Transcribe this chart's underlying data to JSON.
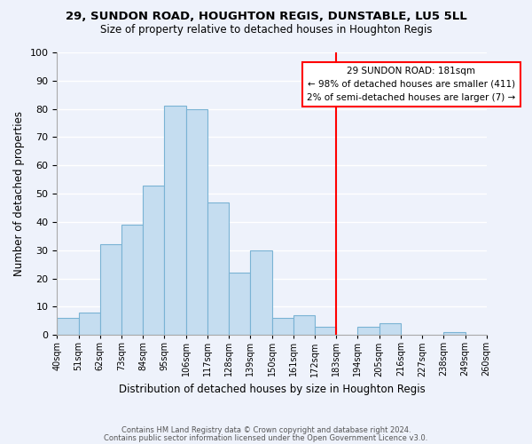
{
  "title1": "29, SUNDON ROAD, HOUGHTON REGIS, DUNSTABLE, LU5 5LL",
  "title2": "Size of property relative to detached houses in Houghton Regis",
  "xlabel": "Distribution of detached houses by size in Houghton Regis",
  "ylabel": "Number of detached properties",
  "bin_labels": [
    "40sqm",
    "51sqm",
    "62sqm",
    "73sqm",
    "84sqm",
    "95sqm",
    "106sqm",
    "117sqm",
    "128sqm",
    "139sqm",
    "150sqm",
    "161sqm",
    "172sqm",
    "183sqm",
    "194sqm",
    "205sqm",
    "216sqm",
    "227sqm",
    "238sqm",
    "249sqm",
    "260sqm"
  ],
  "bar_values": [
    6,
    8,
    32,
    39,
    53,
    81,
    80,
    47,
    22,
    30,
    6,
    7,
    3,
    0,
    3,
    4,
    0,
    0,
    1,
    0
  ],
  "bar_color": "#c5ddf0",
  "bar_edge_color": "#7ab3d4",
  "vline_color": "red",
  "vline_label_idx": 13,
  "ylim": [
    0,
    100
  ],
  "yticks": [
    0,
    10,
    20,
    30,
    40,
    50,
    60,
    70,
    80,
    90,
    100
  ],
  "annotation_title": "29 SUNDON ROAD: 181sqm",
  "annotation_line1": "← 98% of detached houses are smaller (411)",
  "annotation_line2": "2% of semi-detached houses are larger (7) →",
  "footer1": "Contains HM Land Registry data © Crown copyright and database right 2024.",
  "footer2": "Contains public sector information licensed under the Open Government Licence v3.0.",
  "bg_color": "#eef2fb"
}
